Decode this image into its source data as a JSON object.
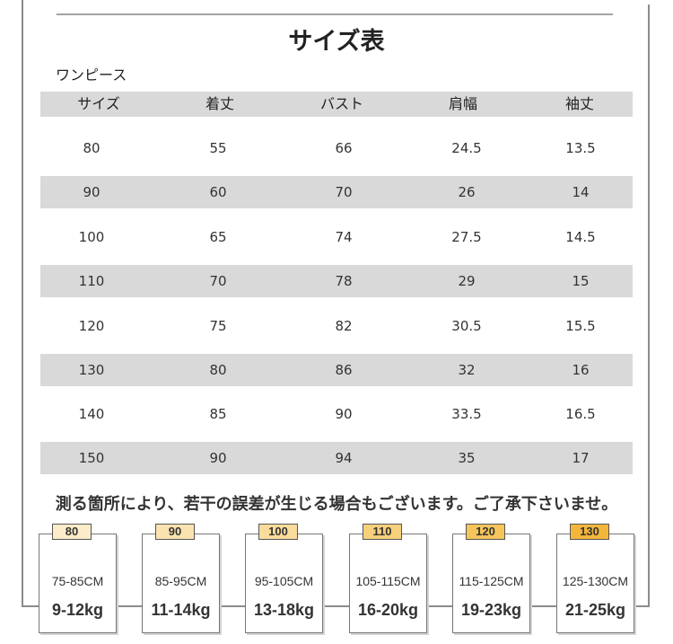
{
  "title": "サイズ表",
  "product_type": "ワンピース",
  "table": {
    "headers": [
      "サイズ",
      "着丈",
      "バスト",
      "肩幅",
      "袖丈"
    ],
    "rows": [
      [
        "80",
        "55",
        "66",
        "24.5",
        "13.5"
      ],
      [
        "90",
        "60",
        "70",
        "26",
        "14"
      ],
      [
        "100",
        "65",
        "74",
        "27.5",
        "14.5"
      ],
      [
        "110",
        "70",
        "78",
        "29",
        "15"
      ],
      [
        "120",
        "75",
        "82",
        "30.5",
        "15.5"
      ],
      [
        "130",
        "80",
        "86",
        "32",
        "16"
      ],
      [
        "140",
        "85",
        "90",
        "33.5",
        "16.5"
      ],
      [
        "150",
        "90",
        "94",
        "35",
        "17"
      ]
    ]
  },
  "note": "測る箇所により、若干の誤差が生じる場合もございます。ご了承下さいませ。",
  "size_cards": [
    {
      "size": "80",
      "height_range": "75-85CM",
      "weight_range": "9-12kg",
      "tab_color": "#fcecc9"
    },
    {
      "size": "90",
      "height_range": "85-95CM",
      "weight_range": "11-14kg",
      "tab_color": "#fae3b1"
    },
    {
      "size": "100",
      "height_range": "95-105CM",
      "weight_range": "13-18kg",
      "tab_color": "#f9dc9b"
    },
    {
      "size": "110",
      "height_range": "105-115CM",
      "weight_range": "16-20kg",
      "tab_color": "#f7d07b"
    },
    {
      "size": "120",
      "height_range": "115-125CM",
      "weight_range": "19-23kg",
      "tab_color": "#f5c45b"
    },
    {
      "size": "130",
      "height_range": "125-130CM",
      "weight_range": "21-25kg",
      "tab_color": "#f3b63b"
    }
  ],
  "colors": {
    "stripe": "#d9d9d9",
    "frame_line": "#8c8c8c"
  }
}
